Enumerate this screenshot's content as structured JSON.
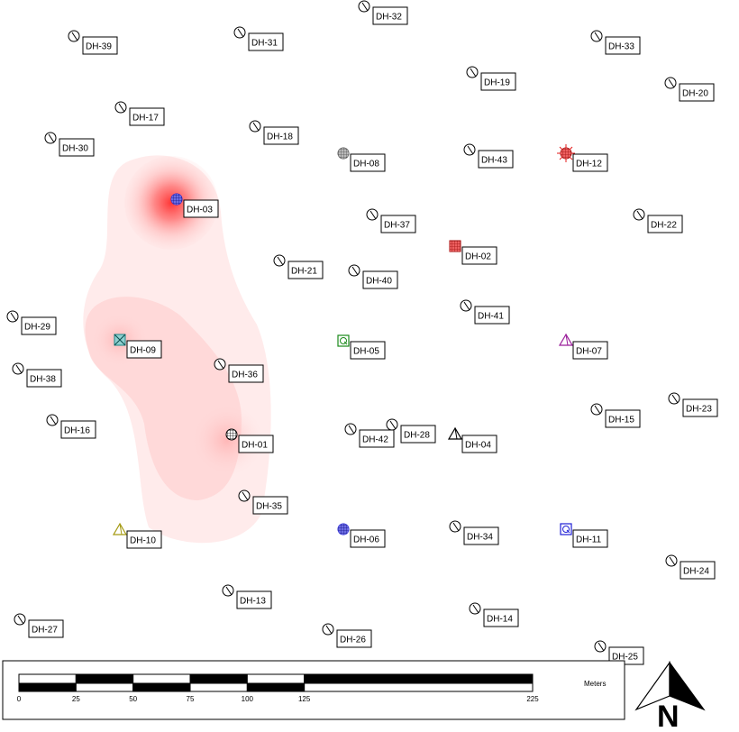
{
  "map": {
    "holes": [
      {
        "id": "DH-39",
        "sym": "std"
      },
      {
        "id": "DH-31",
        "sym": "std"
      },
      {
        "id": "DH-32",
        "sym": "std"
      },
      {
        "id": "DH-33",
        "sym": "std"
      },
      {
        "id": "DH-19",
        "sym": "std"
      },
      {
        "id": "DH-20",
        "sym": "std"
      },
      {
        "id": "DH-17",
        "sym": "std"
      },
      {
        "id": "DH-18",
        "sym": "std"
      },
      {
        "id": "DH-30",
        "sym": "std"
      },
      {
        "id": "DH-08",
        "sym": "grid-gray"
      },
      {
        "id": "DH-43",
        "sym": "std"
      },
      {
        "id": "DH-12",
        "sym": "star-red"
      },
      {
        "id": "DH-03",
        "sym": "circle-blue"
      },
      {
        "id": "DH-37",
        "sym": "std"
      },
      {
        "id": "DH-22",
        "sym": "std"
      },
      {
        "id": "DH-02",
        "sym": "square-red"
      },
      {
        "id": "DH-21",
        "sym": "std"
      },
      {
        "id": "DH-40",
        "sym": "std"
      },
      {
        "id": "DH-41",
        "sym": "std"
      },
      {
        "id": "DH-29",
        "sym": "std"
      },
      {
        "id": "DH-09",
        "sym": "square-cross-teal"
      },
      {
        "id": "DH-05",
        "sym": "square-green"
      },
      {
        "id": "DH-07",
        "sym": "triangle-purple"
      },
      {
        "id": "DH-38",
        "sym": "std"
      },
      {
        "id": "DH-36",
        "sym": "std"
      },
      {
        "id": "DH-23",
        "sym": "std"
      },
      {
        "id": "DH-15",
        "sym": "std"
      },
      {
        "id": "DH-16",
        "sym": "std"
      },
      {
        "id": "DH-28",
        "sym": "std"
      },
      {
        "id": "DH-42",
        "sym": "std"
      },
      {
        "id": "DH-01",
        "sym": "circle-black"
      },
      {
        "id": "DH-04",
        "sym": "triangle-black"
      },
      {
        "id": "DH-35",
        "sym": "std"
      },
      {
        "id": "DH-10",
        "sym": "triangle-olive"
      },
      {
        "id": "DH-06",
        "sym": "circle-blue"
      },
      {
        "id": "DH-34",
        "sym": "std"
      },
      {
        "id": "DH-11",
        "sym": "square-blue"
      },
      {
        "id": "DH-24",
        "sym": "std"
      },
      {
        "id": "DH-13",
        "sym": "std"
      },
      {
        "id": "DH-14",
        "sym": "std"
      },
      {
        "id": "DH-27",
        "sym": "std"
      },
      {
        "id": "DH-26",
        "sym": "std"
      },
      {
        "id": "DH-25",
        "sym": "std"
      }
    ],
    "colors": {
      "heat": "#f44f4f",
      "red": "#e51b1b",
      "blue": "#1f1fd6",
      "green": "#1a8a1a",
      "teal": "#1a8a8a",
      "purple": "#9b1f9b",
      "olive": "#a49a12",
      "gray": "#8c8c8c"
    }
  },
  "scale_bar": {
    "units": "Meters",
    "ticks": [
      "0",
      "25",
      "50",
      "75",
      "100",
      "125",
      "225"
    ]
  },
  "north_arrow": {
    "label": "N"
  }
}
